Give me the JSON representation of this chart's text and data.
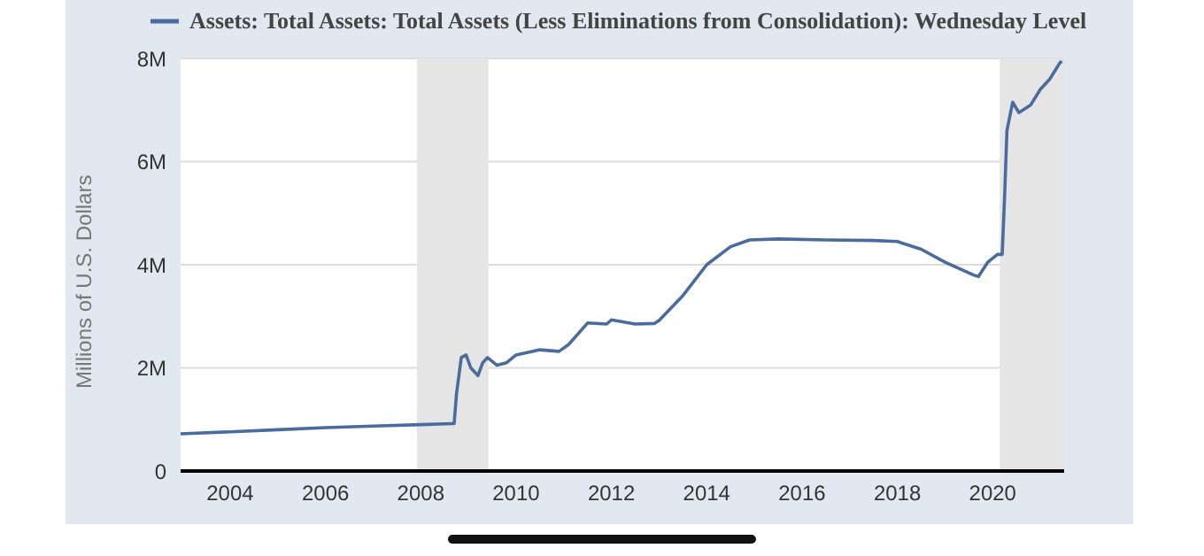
{
  "chart_data": {
    "type": "line",
    "ylabel": "Millions of U.S. Dollars",
    "legend": "top left",
    "grid": "y",
    "xlim": [
      2002.96,
      2021.5
    ],
    "xticks": [
      {
        "value": 2004,
        "label": "2004"
      },
      {
        "value": 2006,
        "label": "2006"
      },
      {
        "value": 2008,
        "label": "2008"
      },
      {
        "value": 2010,
        "label": "2010"
      },
      {
        "value": 2012,
        "label": "2012"
      },
      {
        "value": 2014,
        "label": "2014"
      },
      {
        "value": 2016,
        "label": "2016"
      },
      {
        "value": 2018,
        "label": "2018"
      },
      {
        "value": 2020,
        "label": "2020"
      }
    ],
    "ylim": [
      0,
      8000000
    ],
    "yticks": [
      {
        "value": 0,
        "label": "0"
      },
      {
        "value": 2000000,
        "label": "2M"
      },
      {
        "value": 4000000,
        "label": "4M"
      },
      {
        "value": 6000000,
        "label": "6M"
      },
      {
        "value": 8000000,
        "label": "8M"
      }
    ],
    "bands": [
      {
        "axis": "x",
        "from": 2007.92,
        "to": 2009.42,
        "color": "#e5e5e5"
      },
      {
        "axis": "x",
        "from": 2020.15,
        "to": 2021.5,
        "color": "#e5e5e5"
      }
    ],
    "series": [
      {
        "name": "Assets: Total Assets: Total Assets (Less Eliminations from Consolidation): Wednesday Level",
        "color": "#4a6b9d",
        "x": [
          2002.96,
          2004,
          2005,
          2006,
          2007,
          2008,
          2008.7,
          2008.75,
          2008.85,
          2008.95,
          2009.05,
          2009.2,
          2009.3,
          2009.4,
          2009.6,
          2009.8,
          2010,
          2010.5,
          2010.9,
          2011.1,
          2011.5,
          2011.9,
          2012,
          2012.5,
          2012.9,
          2013,
          2013.5,
          2014,
          2014.5,
          2014.9,
          2015.5,
          2016.5,
          2017.5,
          2018,
          2018.5,
          2019,
          2019.6,
          2019.7,
          2019.9,
          2020.1,
          2020.2,
          2020.25,
          2020.3,
          2020.42,
          2020.55,
          2020.8,
          2021,
          2021.2,
          2021.4,
          2021.45
        ],
        "values": [
          720000,
          760000,
          800000,
          840000,
          870000,
          900000,
          920000,
          1500000,
          2200000,
          2250000,
          2000000,
          1850000,
          2100000,
          2200000,
          2050000,
          2100000,
          2250000,
          2350000,
          2320000,
          2450000,
          2870000,
          2850000,
          2930000,
          2850000,
          2860000,
          2920000,
          3400000,
          4000000,
          4350000,
          4480000,
          4500000,
          4480000,
          4470000,
          4450000,
          4300000,
          4050000,
          3800000,
          3770000,
          4050000,
          4200000,
          4200000,
          5300000,
          6600000,
          7150000,
          6950000,
          7100000,
          7400000,
          7600000,
          7900000,
          7950000
        ]
      }
    ]
  }
}
